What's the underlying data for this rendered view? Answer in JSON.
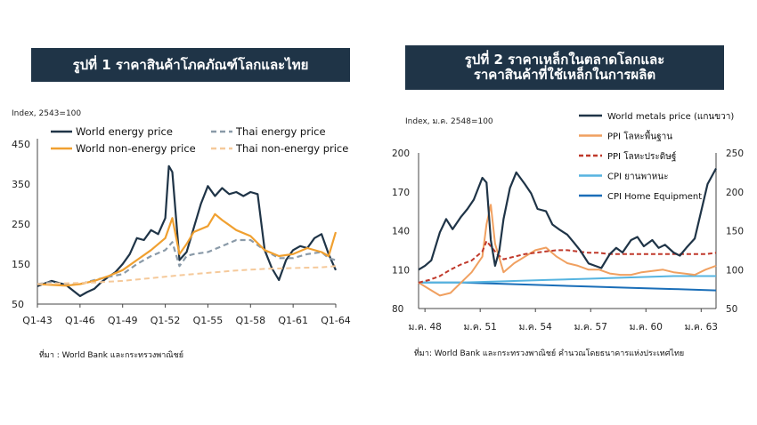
{
  "figure1": {
    "title": "รูปที่ 1 ราคาสินค้าโภคภัณฑ์โลกและไทย",
    "source": "ที่มา : World Bank และกระทรวงพาณิชย์",
    "chart_data": {
      "type": "line",
      "ylabel": "Index, 2543=100",
      "ylim": [
        50,
        450
      ],
      "yticks": [
        "50",
        "150",
        "250",
        "350",
        "450"
      ],
      "xticks": [
        "Q1-43",
        "Q1-46",
        "Q1-49",
        "Q1-52",
        "Q1-55",
        "Q1-58",
        "Q1-61",
        "Q1-64"
      ],
      "legend": [
        "World energy price",
        "Thai energy price",
        "World non-energy price",
        "Thai non-energy price"
      ],
      "series": [
        {
          "name": "World energy price",
          "color": "#1f3447",
          "dash": "",
          "width": 2.2,
          "x": [
            0,
            1,
            2,
            3,
            3.5,
            4,
            4.5,
            5,
            5.5,
            6,
            6.5,
            7,
            7.5,
            8,
            8.5,
            9,
            9.25,
            9.5,
            10,
            10.5,
            11,
            11.25,
            11.5,
            12,
            12.5,
            13,
            13.5,
            14,
            14.5,
            15,
            15.5,
            16,
            16.5,
            17,
            17.5,
            18,
            18.5,
            19,
            19.5,
            20,
            20.5,
            21
          ],
          "values": [
            95,
            108,
            98,
            70,
            80,
            88,
            105,
            118,
            130,
            150,
            175,
            215,
            210,
            235,
            225,
            265,
            395,
            380,
            160,
            180,
            240,
            270,
            300,
            345,
            320,
            340,
            325,
            330,
            320,
            330,
            325,
            185,
            140,
            110,
            160,
            185,
            195,
            190,
            215,
            225,
            175,
            135
          ]
        },
        {
          "name": "Thai energy price",
          "color": "#8a9aa8",
          "dash": "6,4",
          "width": 2.2,
          "x": [
            0,
            1,
            2,
            3,
            4,
            5,
            6,
            7,
            8,
            9,
            9.5,
            10,
            10.5,
            11,
            12,
            13,
            14,
            15,
            16,
            17,
            18,
            19,
            20,
            20.5,
            21
          ],
          "values": [
            100,
            105,
            98,
            100,
            110,
            118,
            125,
            150,
            170,
            185,
            205,
            145,
            170,
            175,
            180,
            195,
            210,
            210,
            185,
            165,
            165,
            175,
            180,
            165,
            160
          ]
        },
        {
          "name": "World non-energy price",
          "color": "#f0a030",
          "dash": "",
          "width": 2.2,
          "x": [
            0,
            1,
            2,
            3,
            4,
            5,
            6,
            7,
            8,
            9,
            9.5,
            10,
            10.5,
            11,
            12,
            12.5,
            13,
            14,
            15,
            16,
            17,
            18,
            19,
            20,
            20.5,
            21
          ],
          "values": [
            100,
            98,
            96,
            100,
            108,
            120,
            135,
            160,
            185,
            215,
            265,
            175,
            200,
            230,
            245,
            275,
            260,
            235,
            220,
            185,
            170,
            175,
            190,
            180,
            170,
            230
          ]
        },
        {
          "name": "Thai non-energy price",
          "color": "#f5c99a",
          "dash": "6,4",
          "width": 2,
          "x": [
            0,
            2,
            4,
            6,
            8,
            10,
            12,
            14,
            16,
            18,
            20,
            21
          ],
          "values": [
            100,
            102,
            104,
            108,
            115,
            122,
            128,
            134,
            138,
            140,
            142,
            145
          ]
        }
      ]
    }
  },
  "figure2": {
    "title_line1": "รูปที่ 2 ราคาเหล็กในตลาดโลกและ",
    "title_line2": "ราคาสินค้าที่ใช้เหล็กในการผลิต",
    "source": "ที่มา: World Bank และกระทรวงพาณิชย์ คำนวณโดยธนาคารแห่งประเทศไทย",
    "chart_data": {
      "type": "line",
      "ylabel": "Index, ม.ค. 2548=100",
      "ylim_left": [
        80,
        200
      ],
      "ylim_right": [
        50,
        250
      ],
      "yticks_left": [
        "80",
        "110",
        "140",
        "170",
        "200"
      ],
      "yticks_right": [
        "50",
        "100",
        "150",
        "200",
        "250"
      ],
      "xticks": [
        "ม.ค. 48",
        "ม.ค. 51",
        "ม.ค. 54",
        "ม.ค. 57",
        "ม.ค. 60",
        "ม.ค. 63"
      ],
      "legend": [
        "World metals price (แกนขวา)",
        "PPI โลหะพื้นฐาน",
        "PPI โลหะประดิษฐ์",
        "CPI ยานพาหนะ",
        "CPI Home Equipment"
      ],
      "series": [
        {
          "name": "World metals price (แกนขวา)",
          "axis": "right",
          "color": "#1f3447",
          "dash": "",
          "width": 2.2,
          "x": [
            0,
            0.3,
            0.6,
            1,
            1.3,
            1.6,
            2,
            2.3,
            2.6,
            3,
            3.2,
            3.4,
            3.6,
            3.8,
            4,
            4.3,
            4.6,
            5,
            5.3,
            5.6,
            6,
            6.3,
            6.6,
            7,
            7.3,
            7.6,
            8,
            8.3,
            8.6,
            9,
            9.3,
            9.6,
            10,
            10.3,
            10.6,
            11,
            11.3,
            11.6,
            12,
            12.3,
            12.6,
            13,
            13.3,
            13.6,
            14
          ],
          "values": [
            100,
            105,
            112,
            148,
            165,
            152,
            168,
            178,
            190,
            218,
            212,
            138,
            105,
            125,
            165,
            205,
            225,
            210,
            198,
            178,
            175,
            158,
            152,
            145,
            135,
            125,
            108,
            105,
            102,
            120,
            128,
            122,
            138,
            142,
            130,
            138,
            128,
            132,
            122,
            118,
            128,
            140,
            175,
            210,
            230
          ]
        },
        {
          "name": "PPI โลหะพื้นฐาน",
          "axis": "left",
          "color": "#f0a060",
          "dash": "",
          "width": 2,
          "x": [
            0,
            0.5,
            1,
            1.5,
            2,
            2.5,
            3,
            3.2,
            3.4,
            3.6,
            4,
            4.5,
            5,
            5.5,
            6,
            6.5,
            7,
            7.5,
            8,
            8.5,
            9,
            9.5,
            10,
            10.5,
            11,
            11.5,
            12,
            12.5,
            13,
            13.5,
            14
          ],
          "values": [
            100,
            95,
            90,
            92,
            100,
            108,
            120,
            145,
            160,
            130,
            108,
            115,
            120,
            125,
            127,
            120,
            115,
            113,
            110,
            110,
            107,
            106,
            106,
            108,
            109,
            110,
            108,
            107,
            106,
            110,
            113
          ]
        },
        {
          "name": "PPI โลหะประดิษฐ์",
          "axis": "left",
          "color": "#c0392b",
          "dash": "5,3",
          "width": 2,
          "x": [
            0,
            0.5,
            1,
            1.5,
            2,
            2.5,
            3,
            3.2,
            3.4,
            3.7,
            4,
            4.5,
            5,
            5.5,
            6,
            6.5,
            7,
            7.5,
            8,
            8.5,
            9,
            9.5,
            10,
            10.5,
            11,
            11.5,
            12,
            12.5,
            13,
            13.5,
            14
          ],
          "values": [
            100,
            102,
            105,
            110,
            114,
            117,
            124,
            132,
            128,
            122,
            118,
            120,
            122,
            123,
            124,
            125,
            125,
            124,
            123,
            123,
            122,
            122,
            122,
            122,
            122,
            122,
            122,
            122,
            122,
            122,
            123
          ]
        },
        {
          "name": "CPI ยานพาหนะ",
          "axis": "left",
          "color": "#56b4e0",
          "dash": "",
          "width": 2,
          "x": [
            0,
            2,
            4,
            6,
            8,
            10,
            12,
            14
          ],
          "values": [
            100,
            100,
            101,
            102,
            103,
            104,
            105,
            105
          ]
        },
        {
          "name": "CPI Home Equipment",
          "axis": "left",
          "color": "#1a6eb8",
          "dash": "",
          "width": 2,
          "x": [
            0,
            2,
            4,
            6,
            8,
            10,
            12,
            14
          ],
          "values": [
            100,
            100,
            99,
            98,
            97,
            96,
            95,
            94
          ]
        }
      ]
    }
  }
}
